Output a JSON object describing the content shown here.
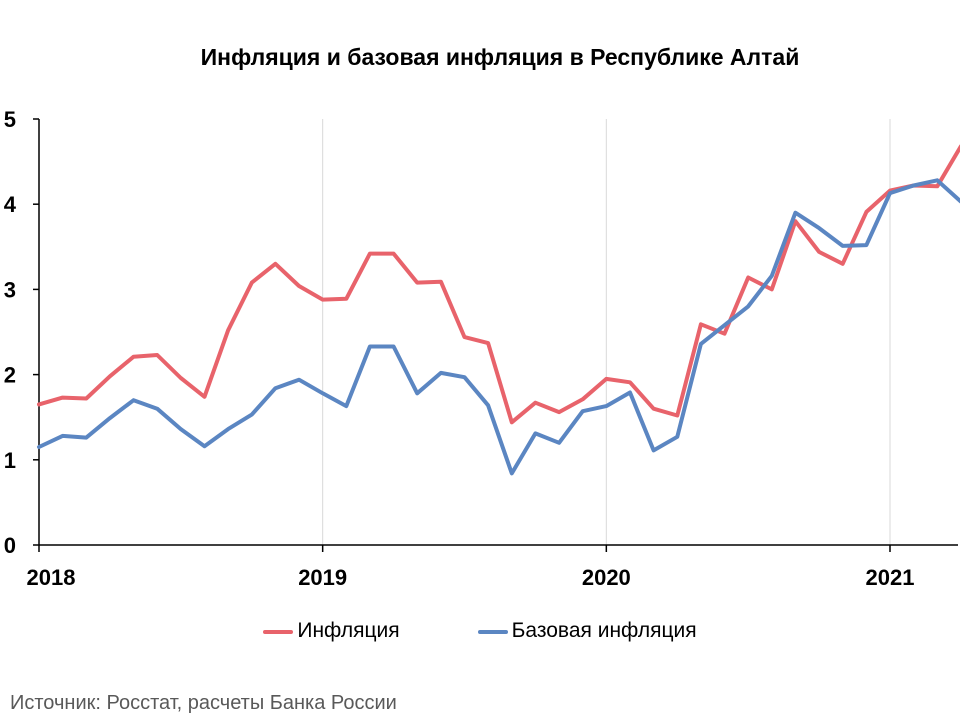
{
  "chart_data": {
    "type": "line",
    "title": "Инфляция и базовая инфляция в Республике Алтай",
    "ylim": [
      0,
      5
    ],
    "y_ticks": [
      "0",
      "1",
      "2",
      "3",
      "4",
      "5"
    ],
    "x_ticks": [
      "2018",
      "2019",
      "2020",
      "2021"
    ],
    "x": [
      "2018-01",
      "2018-02",
      "2018-03",
      "2018-04",
      "2018-05",
      "2018-06",
      "2018-07",
      "2018-08",
      "2018-09",
      "2018-10",
      "2018-11",
      "2018-12",
      "2019-01",
      "2019-02",
      "2019-03",
      "2019-04",
      "2019-05",
      "2019-06",
      "2019-07",
      "2019-08",
      "2019-09",
      "2019-10",
      "2019-11",
      "2019-12",
      "2020-01",
      "2020-02",
      "2020-03",
      "2020-04",
      "2020-05",
      "2020-06",
      "2020-07",
      "2020-08",
      "2020-09",
      "2020-10",
      "2020-11",
      "2020-12",
      "2021-01",
      "2021-02",
      "2021-03",
      "2021-04"
    ],
    "grid": "vertical",
    "legend_position": "bottom",
    "series": [
      {
        "name": "Инфляция",
        "color": "#E8636B",
        "values": [
          1.65,
          1.73,
          1.72,
          1.98,
          2.21,
          2.23,
          1.96,
          1.74,
          2.52,
          3.08,
          3.3,
          3.04,
          2.88,
          2.89,
          3.42,
          3.42,
          3.08,
          3.09,
          2.44,
          2.37,
          1.44,
          1.67,
          1.56,
          1.71,
          1.95,
          1.91,
          1.6,
          1.52,
          2.59,
          2.48,
          3.14,
          3.0,
          3.8,
          3.44,
          3.3,
          3.91,
          4.16,
          4.22,
          4.21,
          4.68
        ]
      },
      {
        "name": "Базовая инфляция",
        "color": "#5B86C2",
        "values": [
          1.15,
          1.28,
          1.26,
          1.49,
          1.7,
          1.6,
          1.36,
          1.16,
          1.36,
          1.53,
          1.84,
          1.94,
          1.78,
          1.63,
          2.33,
          2.33,
          1.78,
          2.02,
          1.97,
          1.64,
          0.84,
          1.31,
          1.2,
          1.57,
          1.63,
          1.79,
          1.11,
          1.27,
          2.36,
          2.58,
          2.8,
          3.16,
          3.9,
          3.72,
          3.51,
          3.52,
          4.13,
          4.22,
          4.28,
          4.03
        ]
      }
    ]
  },
  "source": "Источник: Росстат, расчеты Банка России"
}
